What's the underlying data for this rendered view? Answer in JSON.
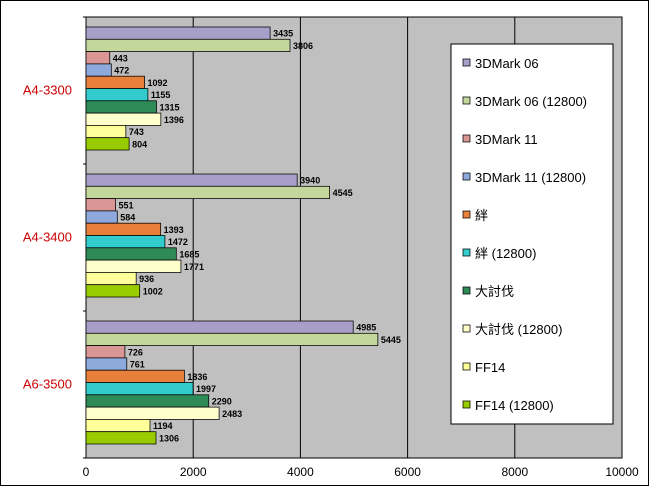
{
  "chart_data": {
    "type": "bar",
    "orientation": "horizontal",
    "title": "",
    "xlabel": "",
    "ylabel": "",
    "xlim": [
      0,
      10000
    ],
    "xticks": [
      0,
      2000,
      4000,
      6000,
      8000,
      10000
    ],
    "grid": true,
    "legend_position": "right",
    "categories": [
      "A4-3300",
      "A4-3400",
      "A6-3500"
    ],
    "series": [
      {
        "name": "3DMark 06",
        "color": "#a89fc8",
        "values": [
          3435,
          3940,
          4985
        ]
      },
      {
        "name": "3DMark 06 (12800)",
        "color": "#c3d69b",
        "values": [
          3806,
          4545,
          5445
        ]
      },
      {
        "name": "3DMark 11",
        "color": "#d99694",
        "values": [
          443,
          551,
          726
        ]
      },
      {
        "name": "3DMark 11 (12800)",
        "color": "#8ea9db",
        "values": [
          472,
          584,
          761
        ]
      },
      {
        "name": "絆",
        "color": "#e8803c",
        "values": [
          1092,
          1393,
          1836
        ]
      },
      {
        "name": "絆 (12800)",
        "color": "#33cccc",
        "values": [
          1155,
          1472,
          1997
        ]
      },
      {
        "name": "大討伐",
        "color": "#2e8b57",
        "values": [
          1315,
          1685,
          2290
        ]
      },
      {
        "name": "大討伐 (12800)",
        "color": "#ffffcc",
        "values": [
          1396,
          1771,
          2483
        ]
      },
      {
        "name": "FF14",
        "color": "#ffff99",
        "values": [
          743,
          936,
          1194
        ]
      },
      {
        "name": "FF14 (12800)",
        "color": "#99cc00",
        "values": [
          804,
          1002,
          1306
        ]
      }
    ]
  },
  "colors": {
    "plot_background": "#c0c0c0",
    "category_label": "#cc0000",
    "gridline": "#000000"
  }
}
